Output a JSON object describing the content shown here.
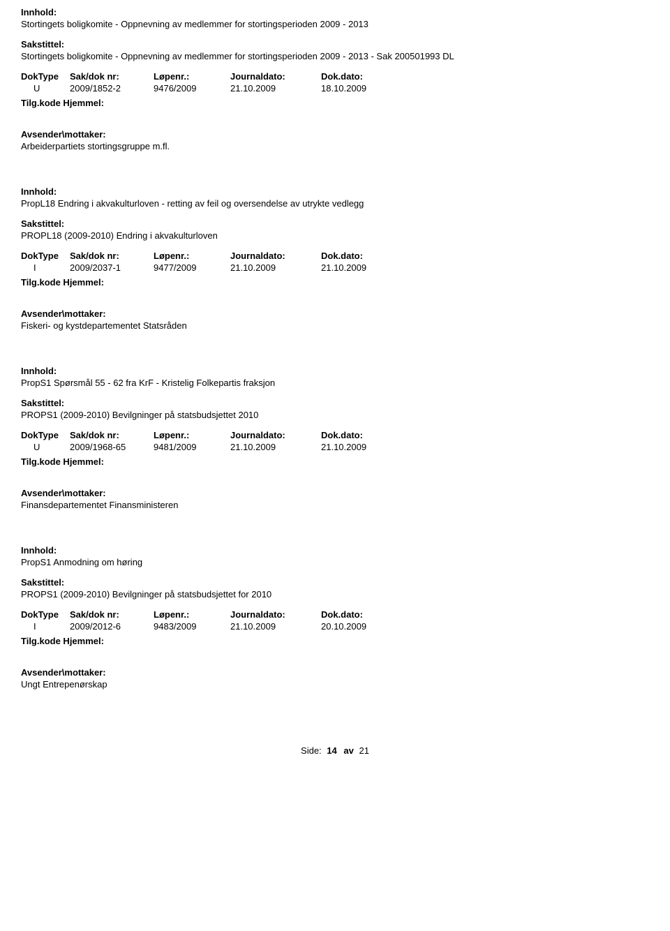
{
  "labels": {
    "innhold": "Innhold:",
    "sakstittel": "Sakstittel:",
    "doktype": "DokType",
    "sakdok": "Sak/dok nr:",
    "lopenr": "Løpenr.:",
    "journaldato": "Journaldato:",
    "dokdato": "Dok.dato:",
    "tilgkode": "Tilg.kode Hjemmel:",
    "avsender": "Avsender\\mottaker:"
  },
  "entries": [
    {
      "innhold": "Stortingets boligkomite - Oppnevning av medlemmer for stortingsperioden 2009 - 2013",
      "sakstittel": "Stortingets boligkomite - Oppnevning av medlemmer for stortingsperioden 2009 - 2013 - Sak 200501993 DL",
      "doktype": "U",
      "sakdok": "2009/1852-2",
      "lopenr": "9476/2009",
      "jdato": "21.10.2009",
      "ddato": "18.10.2009",
      "avsender": "Arbeiderpartiets stortingsgruppe m.fl."
    },
    {
      "innhold": "PropL18 Endring i akvakulturloven - retting av feil og oversendelse av utrykte vedlegg",
      "sakstittel": "PROPL18 (2009-2010) Endring i akvakulturloven",
      "doktype": "I",
      "sakdok": "2009/2037-1",
      "lopenr": "9477/2009",
      "jdato": "21.10.2009",
      "ddato": "21.10.2009",
      "avsender": "Fiskeri- og kystdepartementet Statsråden"
    },
    {
      "innhold": "PropS1 Spørsmål 55 - 62 fra KrF - Kristelig Folkepartis fraksjon",
      "sakstittel": "PROPS1 (2009-2010) Bevilgninger på statsbudsjettet 2010",
      "doktype": "U",
      "sakdok": "2009/1968-65",
      "lopenr": "9481/2009",
      "jdato": "21.10.2009",
      "ddato": "21.10.2009",
      "avsender": "Finansdepartementet Finansministeren"
    },
    {
      "innhold": "PropS1 Anmodning om høring",
      "sakstittel": "PROPS1 (2009-2010) Bevilgninger på statsbudsjettet for 2010",
      "doktype": "I",
      "sakdok": "2009/2012-6",
      "lopenr": "9483/2009",
      "jdato": "21.10.2009",
      "ddato": "20.10.2009",
      "avsender": "Ungt Entrepenørskap"
    }
  ],
  "footer": {
    "label": "Side:",
    "current": "14",
    "av": "av",
    "total": "21"
  }
}
